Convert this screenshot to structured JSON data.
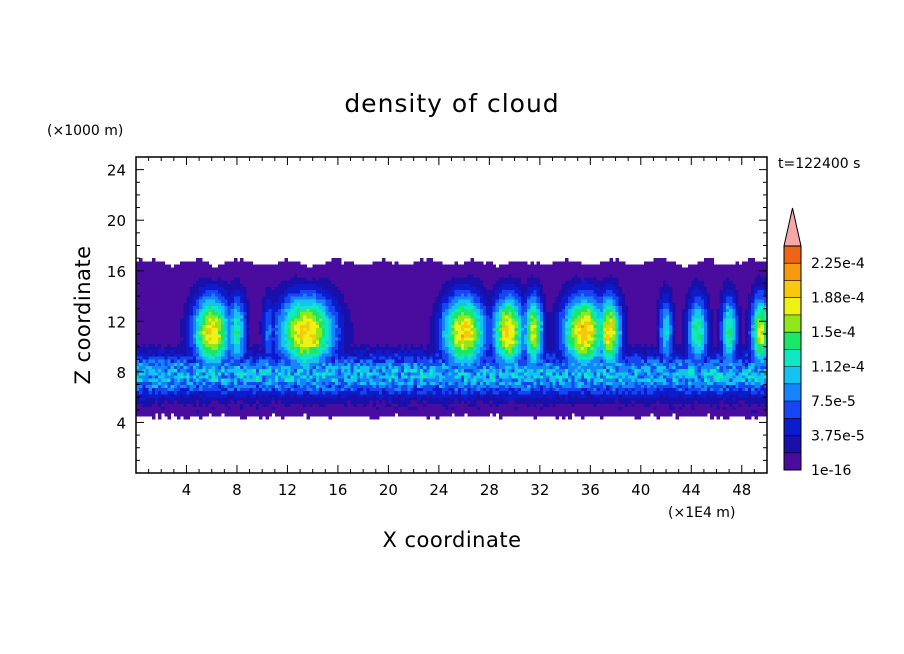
{
  "chart_data": {
    "type": "heatmap",
    "title": "density of cloud",
    "xlabel": "X coordinate",
    "ylabel": "Z coordinate",
    "x_unit": "(×1E4 m)",
    "y_unit": "(×1000 m)",
    "time_label": "t=122400 s",
    "xlim": [
      0,
      50
    ],
    "ylim": [
      0,
      25
    ],
    "x_ticks": [
      4,
      8,
      12,
      16,
      20,
      24,
      28,
      32,
      36,
      40,
      44,
      48
    ],
    "y_ticks": [
      4,
      8,
      12,
      16,
      20,
      24
    ],
    "grid": false,
    "colorbar": {
      "placement": "right",
      "extend": "max",
      "levels": [
        1e-16,
        1.875e-05,
        3.75e-05,
        5.625e-05,
        7.5e-05,
        9.375e-05,
        0.0001125,
        0.00013125,
        0.00015,
        0.00016875,
        0.0001875,
        0.00020625,
        0.000225,
        0.00024375
      ],
      "tick_labels": [
        "1e-16",
        "3.75e-5",
        "7.5e-5",
        "1.12e-4",
        "1.5e-4",
        "1.88e-4",
        "2.25e-4"
      ],
      "colors": [
        "#4a0c9e",
        "#1a0fa8",
        "#0c1ccc",
        "#1645f2",
        "#1683ff",
        "#12c4f0",
        "#10e8c4",
        "#19e866",
        "#8ee81a",
        "#eef214",
        "#f7c80c",
        "#f59a0c",
        "#f06416",
        "#e82a1e",
        "#f4a8a8"
      ],
      "over_color": "#f4a8a8"
    },
    "cloud_base": 4.3,
    "cloud_top": 16.8,
    "convective_cores": [
      {
        "x": 6.0,
        "peak": 0.000205,
        "width": 1.6
      },
      {
        "x": 8.0,
        "peak": 0.00014,
        "width": 0.8
      },
      {
        "x": 10.5,
        "peak": 9e-05,
        "width": 0.5
      },
      {
        "x": 13.5,
        "peak": 0.00021,
        "width": 2.4
      },
      {
        "x": 24.5,
        "peak": 0.00011,
        "width": 0.4
      },
      {
        "x": 26.0,
        "peak": 0.00021,
        "width": 1.8
      },
      {
        "x": 29.5,
        "peak": 0.00021,
        "width": 1.3
      },
      {
        "x": 31.5,
        "peak": 0.00019,
        "width": 0.8
      },
      {
        "x": 35.5,
        "peak": 0.000215,
        "width": 1.8
      },
      {
        "x": 37.5,
        "peak": 0.000205,
        "width": 1.0
      },
      {
        "x": 42.0,
        "peak": 0.00012,
        "width": 0.6
      },
      {
        "x": 44.5,
        "peak": 0.000145,
        "width": 0.9
      },
      {
        "x": 47.0,
        "peak": 0.00015,
        "width": 0.7
      },
      {
        "x": 49.5,
        "peak": 0.00019,
        "width": 0.8
      }
    ]
  }
}
